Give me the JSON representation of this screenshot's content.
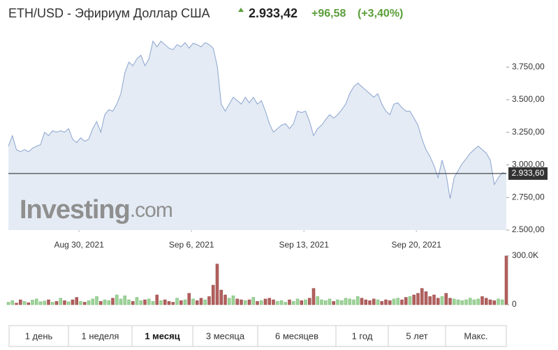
{
  "header": {
    "title": "ETH/USD - Эфириум Доллар США",
    "price": "2.933,42",
    "change": "+96,58",
    "change_pct": "(+3,40%)"
  },
  "watermark": {
    "brand": "Investing",
    "suffix": ".com"
  },
  "chart_data": [
    {
      "type": "area",
      "color": "#8ba5cf",
      "fill": "#e4ebf4",
      "xlim": [
        0,
        124
      ],
      "xticks": [
        {
          "value": 17.6,
          "label": "Aug 30, 2021"
        },
        {
          "value": 45.6,
          "label": "Sep 6, 2021"
        },
        {
          "value": 73.6,
          "label": "Sep 13, 2021"
        },
        {
          "value": 101.6,
          "label": "Sep 20, 2021"
        }
      ],
      "ylim": [
        2500,
        4040
      ],
      "yticks": [
        {
          "value": 2500,
          "label": "2.500,00"
        },
        {
          "value": 2750,
          "label": "2.750,00"
        },
        {
          "value": 3000,
          "label": "3.000,00"
        },
        {
          "value": 3250,
          "label": "3.250,00"
        },
        {
          "value": 3500,
          "label": "3.500,00"
        },
        {
          "value": 3750,
          "label": "3.750,00"
        }
      ],
      "last_price": {
        "value": 2933.6,
        "label": "2.933,60"
      },
      "series": [
        {
          "values": [
            3144,
            3224,
            3117,
            3101,
            3117,
            3101,
            3128,
            3144,
            3155,
            3251,
            3224,
            3262,
            3251,
            3262,
            3251,
            3278,
            3197,
            3171,
            3208,
            3181,
            3197,
            3278,
            3332,
            3251,
            3385,
            3423,
            3412,
            3466,
            3546,
            3707,
            3788,
            3761,
            3814,
            3841,
            3761,
            3814,
            3949,
            3906,
            3949,
            3922,
            3895,
            3884,
            3922,
            3906,
            3938,
            3895,
            3933,
            3922,
            3906,
            3938,
            3922,
            3895,
            3761,
            3466,
            3412,
            3466,
            3519,
            3493,
            3466,
            3519,
            3476,
            3519,
            3466,
            3493,
            3412,
            3316,
            3251,
            3278,
            3305,
            3316,
            3278,
            3316,
            3412,
            3401,
            3412,
            3332,
            3224,
            3278,
            3305,
            3348,
            3385,
            3359,
            3385,
            3423,
            3466,
            3546,
            3600,
            3627,
            3600,
            3573,
            3546,
            3519,
            3546,
            3466,
            3412,
            3385,
            3466,
            3476,
            3439,
            3412,
            3412,
            3359,
            3305,
            3197,
            3117,
            3063,
            2994,
            2902,
            3037,
            2929,
            2741,
            2902,
            2956,
            3010,
            3047,
            3090,
            3117,
            3144,
            3117,
            3090,
            3037,
            2849,
            2902,
            2940,
            2933.6
          ]
        }
      ]
    },
    {
      "type": "bar",
      "up_color": "#9fd49a",
      "down_color": "#b3615f",
      "xlim": [
        0,
        124
      ],
      "ylim": [
        0,
        300000
      ],
      "yticks": [
        {
          "value": 0,
          "label": "0"
        },
        {
          "value": 300000,
          "label": "300.0K"
        }
      ],
      "series": [
        {
          "values": [
            15000,
            25000,
            10000,
            30000,
            20000,
            12000,
            28000,
            35000,
            18000,
            22000,
            30000,
            15000,
            20000,
            40000,
            25000,
            18000,
            30000,
            45000,
            20000,
            15000,
            25000,
            35000,
            50000,
            20000,
            30000,
            25000,
            40000,
            60000,
            35000,
            55000,
            30000,
            20000,
            45000,
            25000,
            30000,
            35000,
            20000,
            60000,
            25000,
            30000,
            20000,
            15000,
            40000,
            25000,
            30000,
            70000,
            35000,
            25000,
            40000,
            30000,
            50000,
            120000,
            250000,
            90000,
            60000,
            40000,
            55000,
            35000,
            30000,
            25000,
            30000,
            45000,
            20000,
            25000,
            35000,
            40000,
            30000,
            20000,
            25000,
            15000,
            30000,
            20000,
            35000,
            25000,
            30000,
            40000,
            100000,
            50000,
            30000,
            25000,
            35000,
            20000,
            30000,
            25000,
            40000,
            35000,
            30000,
            50000,
            40000,
            30000,
            25000,
            35000,
            30000,
            20000,
            30000,
            25000,
            35000,
            40000,
            30000,
            45000,
            50000,
            60000,
            70000,
            100000,
            80000,
            50000,
            60000,
            40000,
            50000,
            70000,
            40000,
            35000,
            30000,
            25000,
            30000,
            40000,
            30000,
            35000,
            50000,
            40000,
            30000,
            25000,
            35000,
            30000,
            300000
          ]
        }
      ]
    }
  ],
  "tabs": [
    "1 день",
    "1 неделя",
    "1 месяц",
    "3 месяца",
    "6 месяцев",
    "1 год",
    "5 лет",
    "Макс."
  ],
  "selected_tab": 2
}
